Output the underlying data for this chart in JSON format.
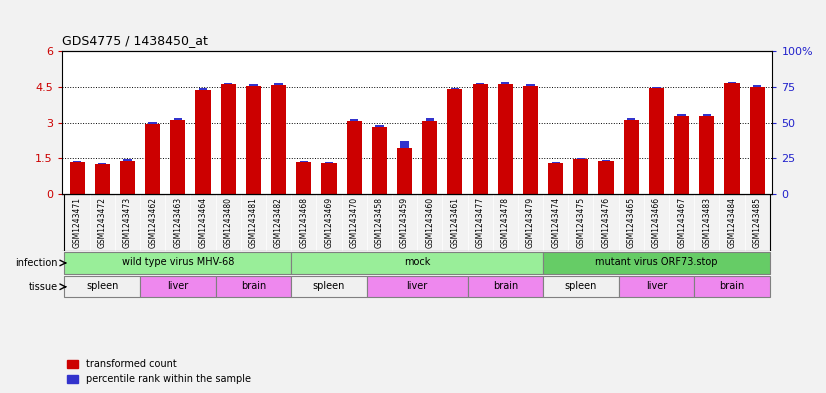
{
  "title": "GDS4775 / 1438450_at",
  "samples": [
    "GSM1243471",
    "GSM1243472",
    "GSM1243473",
    "GSM1243462",
    "GSM1243463",
    "GSM1243464",
    "GSM1243480",
    "GSM1243481",
    "GSM1243482",
    "GSM1243468",
    "GSM1243469",
    "GSM1243470",
    "GSM1243458",
    "GSM1243459",
    "GSM1243460",
    "GSM1243461",
    "GSM1243477",
    "GSM1243478",
    "GSM1243479",
    "GSM1243474",
    "GSM1243475",
    "GSM1243476",
    "GSM1243465",
    "GSM1243466",
    "GSM1243467",
    "GSM1243483",
    "GSM1243484",
    "GSM1243485"
  ],
  "red_values": [
    1.35,
    1.25,
    1.4,
    2.95,
    3.1,
    4.38,
    4.6,
    4.55,
    4.57,
    1.35,
    1.3,
    3.08,
    2.8,
    1.95,
    3.05,
    4.4,
    4.6,
    4.62,
    4.55,
    1.3,
    1.45,
    1.38,
    3.12,
    4.43,
    3.28,
    3.28,
    4.65,
    4.5
  ],
  "blue_values": [
    0.03,
    0.04,
    0.06,
    0.08,
    0.08,
    0.07,
    0.07,
    0.07,
    0.07,
    0.04,
    0.04,
    0.07,
    0.1,
    0.27,
    0.15,
    0.07,
    0.08,
    0.07,
    0.07,
    0.04,
    0.05,
    0.04,
    0.07,
    0.07,
    0.07,
    0.07,
    0.07,
    0.07
  ],
  "ylim_left": [
    0,
    6
  ],
  "ylim_right": [
    0,
    100
  ],
  "yticks_left": [
    0,
    1.5,
    3.0,
    4.5,
    6
  ],
  "yticks_right": [
    0,
    25,
    50,
    75,
    100
  ],
  "bar_color_red": "#CC0000",
  "bar_color_blue": "#3333CC",
  "infections": [
    {
      "label": "wild type virus MHV-68",
      "start": 0,
      "end": 9,
      "color": "#99EE99"
    },
    {
      "label": "mock",
      "start": 9,
      "end": 19,
      "color": "#99EE99"
    },
    {
      "label": "mutant virus ORF73.stop",
      "start": 19,
      "end": 28,
      "color": "#66CC66"
    }
  ],
  "tissues": [
    {
      "label": "spleen",
      "start": 0,
      "end": 3,
      "color": "#F0F0F0"
    },
    {
      "label": "liver",
      "start": 3,
      "end": 6,
      "color": "#EE88EE"
    },
    {
      "label": "brain",
      "start": 6,
      "end": 9,
      "color": "#EE88EE"
    },
    {
      "label": "spleen",
      "start": 9,
      "end": 12,
      "color": "#F0F0F0"
    },
    {
      "label": "liver",
      "start": 12,
      "end": 16,
      "color": "#EE88EE"
    },
    {
      "label": "brain",
      "start": 16,
      "end": 19,
      "color": "#EE88EE"
    },
    {
      "label": "spleen",
      "start": 19,
      "end": 22,
      "color": "#F0F0F0"
    },
    {
      "label": "liver",
      "start": 22,
      "end": 25,
      "color": "#EE88EE"
    },
    {
      "label": "brain",
      "start": 25,
      "end": 28,
      "color": "#EE88EE"
    }
  ],
  "infection_label": "infection",
  "tissue_label": "tissue",
  "legend_red": "transformed count",
  "legend_blue": "percentile rank within the sample",
  "bg_color": "#F2F2F2",
  "plot_bg_color": "#FFFFFF",
  "xtick_bg_color": "#D8D8D8"
}
